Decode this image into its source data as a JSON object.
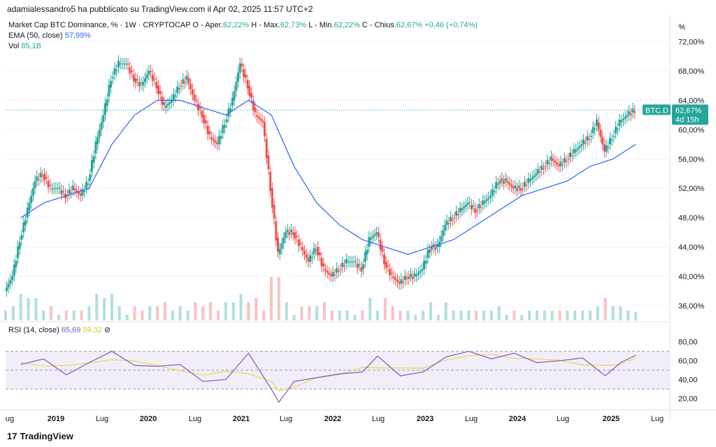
{
  "header": {
    "published": "adamialessandro5 ha pubblicato su TradingView.com il Apr 02, 2025 11:57 UTC+2"
  },
  "legend": {
    "title": "Market Cap BTC Dominance, % · 1W · CRYPTOCAP",
    "o_label": "O - Aper.",
    "o_val": "62,22%",
    "h_label": "H - Max.",
    "h_val": "62,73%",
    "l_label": "L - Min.",
    "l_val": "62,22%",
    "c_label": "C - Chius.",
    "c_val": "62,67%",
    "chg": "+0,46 (+0,74%)",
    "ema_label": "EMA (50, close)",
    "ema_val": "57,99%",
    "vol_label": "Vol",
    "vol_val": "85,1B",
    "rsi_label": "RSI (14, close)",
    "rsi_val": "65,69",
    "rsi_ma_val": "59,32"
  },
  "price_axis": {
    "unit": "%",
    "ticks": [
      "72,00%",
      "68,00%",
      "64,00%",
      "60,00%",
      "56,00%",
      "52,00%",
      "48,00%",
      "44,00%",
      "40,00%",
      "36,00%"
    ],
    "tick_values": [
      72,
      68,
      64,
      60,
      56,
      52,
      48,
      44,
      40,
      36
    ]
  },
  "rsi_axis": {
    "ticks": [
      "80,00",
      "60,00",
      "40,00",
      "20,00"
    ],
    "tick_values": [
      80,
      60,
      40,
      20
    ]
  },
  "time_axis": {
    "labels": [
      "ug",
      "2019",
      "Lug",
      "2020",
      "Lug",
      "2021",
      "Lug",
      "2022",
      "Lug",
      "2023",
      "Lug",
      "2024",
      "Lug",
      "2025",
      "Lug"
    ],
    "bold": [
      false,
      true,
      false,
      true,
      false,
      true,
      false,
      true,
      false,
      true,
      false,
      true,
      false,
      true,
      false
    ]
  },
  "badge": {
    "symbol": "BTC.D",
    "price": "62,67%",
    "countdown": "4d 15h"
  },
  "logo": {
    "text": "TradingView",
    "mark": "17"
  },
  "colors": {
    "up": "#26a69a",
    "down": "#ef5350",
    "ema": "#2962ff",
    "rsi": "#7e57c2",
    "rsi_ma": "#e6d84a",
    "rsi_band": "#ede7f6"
  },
  "chart_data": {
    "type": "candlestick",
    "title": "Market Cap BTC Dominance, % · 1W · CRYPTOCAP",
    "ylim": [
      34,
      75
    ],
    "x_range": [
      "2018-05",
      "2025-08"
    ],
    "series_close": [
      {
        "date": "2018-05",
        "close": 38
      },
      {
        "date": "2018-06",
        "close": 40
      },
      {
        "date": "2018-07",
        "close": 45
      },
      {
        "date": "2018-08",
        "close": 49
      },
      {
        "date": "2018-09",
        "close": 53
      },
      {
        "date": "2018-10",
        "close": 54
      },
      {
        "date": "2018-11",
        "close": 52
      },
      {
        "date": "2018-12",
        "close": 52
      },
      {
        "date": "2019-01",
        "close": 51
      },
      {
        "date": "2019-02",
        "close": 52
      },
      {
        "date": "2019-03",
        "close": 51
      },
      {
        "date": "2019-04",
        "close": 53
      },
      {
        "date": "2019-05",
        "close": 58
      },
      {
        "date": "2019-06",
        "close": 62
      },
      {
        "date": "2019-07",
        "close": 67
      },
      {
        "date": "2019-08",
        "close": 69
      },
      {
        "date": "2019-09",
        "close": 69
      },
      {
        "date": "2019-10",
        "close": 67
      },
      {
        "date": "2019-11",
        "close": 66
      },
      {
        "date": "2019-12",
        "close": 68
      },
      {
        "date": "2020-01",
        "close": 66
      },
      {
        "date": "2020-02",
        "close": 63
      },
      {
        "date": "2020-03",
        "close": 64
      },
      {
        "date": "2020-04",
        "close": 66
      },
      {
        "date": "2020-05",
        "close": 67
      },
      {
        "date": "2020-06",
        "close": 64
      },
      {
        "date": "2020-07",
        "close": 62
      },
      {
        "date": "2020-08",
        "close": 59
      },
      {
        "date": "2020-09",
        "close": 58
      },
      {
        "date": "2020-10",
        "close": 61
      },
      {
        "date": "2020-11",
        "close": 64
      },
      {
        "date": "2020-12",
        "close": 69
      },
      {
        "date": "2021-01",
        "close": 66
      },
      {
        "date": "2021-02",
        "close": 62
      },
      {
        "date": "2021-03",
        "close": 61
      },
      {
        "date": "2021-04",
        "close": 52
      },
      {
        "date": "2021-05",
        "close": 43
      },
      {
        "date": "2021-06",
        "close": 46
      },
      {
        "date": "2021-07",
        "close": 46
      },
      {
        "date": "2021-08",
        "close": 44
      },
      {
        "date": "2021-09",
        "close": 42
      },
      {
        "date": "2021-10",
        "close": 44
      },
      {
        "date": "2021-11",
        "close": 41
      },
      {
        "date": "2021-12",
        "close": 40
      },
      {
        "date": "2022-01",
        "close": 41
      },
      {
        "date": "2022-02",
        "close": 42
      },
      {
        "date": "2022-03",
        "close": 42
      },
      {
        "date": "2022-04",
        "close": 41
      },
      {
        "date": "2022-05",
        "close": 45
      },
      {
        "date": "2022-06",
        "close": 46
      },
      {
        "date": "2022-07",
        "close": 42
      },
      {
        "date": "2022-08",
        "close": 40
      },
      {
        "date": "2022-09",
        "close": 39
      },
      {
        "date": "2022-10",
        "close": 40
      },
      {
        "date": "2022-11",
        "close": 40
      },
      {
        "date": "2022-12",
        "close": 41
      },
      {
        "date": "2023-01",
        "close": 44
      },
      {
        "date": "2023-02",
        "close": 44
      },
      {
        "date": "2023-03",
        "close": 47
      },
      {
        "date": "2023-04",
        "close": 48
      },
      {
        "date": "2023-05",
        "close": 49
      },
      {
        "date": "2023-06",
        "close": 50
      },
      {
        "date": "2023-07",
        "close": 49
      },
      {
        "date": "2023-08",
        "close": 50
      },
      {
        "date": "2023-09",
        "close": 51
      },
      {
        "date": "2023-10",
        "close": 53
      },
      {
        "date": "2023-11",
        "close": 53
      },
      {
        "date": "2023-12",
        "close": 52
      },
      {
        "date": "2024-01",
        "close": 52
      },
      {
        "date": "2024-02",
        "close": 53
      },
      {
        "date": "2024-03",
        "close": 54
      },
      {
        "date": "2024-04",
        "close": 55
      },
      {
        "date": "2024-05",
        "close": 56
      },
      {
        "date": "2024-06",
        "close": 55
      },
      {
        "date": "2024-07",
        "close": 56
      },
      {
        "date": "2024-08",
        "close": 57
      },
      {
        "date": "2024-09",
        "close": 58
      },
      {
        "date": "2024-10",
        "close": 59
      },
      {
        "date": "2024-11",
        "close": 61
      },
      {
        "date": "2024-12",
        "close": 57
      },
      {
        "date": "2025-01",
        "close": 59
      },
      {
        "date": "2025-02",
        "close": 61
      },
      {
        "date": "2025-03",
        "close": 62
      },
      {
        "date": "2025-04",
        "close": 62.67
      }
    ],
    "ema_50": [
      {
        "date": "2018-07",
        "value": 48
      },
      {
        "date": "2018-10",
        "value": 50
      },
      {
        "date": "2019-01",
        "value": 51
      },
      {
        "date": "2019-04",
        "value": 52
      },
      {
        "date": "2019-07",
        "value": 58
      },
      {
        "date": "2019-10",
        "value": 62
      },
      {
        "date": "2020-01",
        "value": 64
      },
      {
        "date": "2020-04",
        "value": 64
      },
      {
        "date": "2020-07",
        "value": 63
      },
      {
        "date": "2020-10",
        "value": 62
      },
      {
        "date": "2021-01",
        "value": 64
      },
      {
        "date": "2021-04",
        "value": 62
      },
      {
        "date": "2021-07",
        "value": 55
      },
      {
        "date": "2021-10",
        "value": 50
      },
      {
        "date": "2022-01",
        "value": 47
      },
      {
        "date": "2022-04",
        "value": 45
      },
      {
        "date": "2022-07",
        "value": 44
      },
      {
        "date": "2022-10",
        "value": 43
      },
      {
        "date": "2023-01",
        "value": 44
      },
      {
        "date": "2023-04",
        "value": 45
      },
      {
        "date": "2023-07",
        "value": 47
      },
      {
        "date": "2023-10",
        "value": 49
      },
      {
        "date": "2024-01",
        "value": 51
      },
      {
        "date": "2024-04",
        "value": 52
      },
      {
        "date": "2024-07",
        "value": 53
      },
      {
        "date": "2024-10",
        "value": 55
      },
      {
        "date": "2025-01",
        "value": 56
      },
      {
        "date": "2025-04",
        "value": 57.99
      }
    ],
    "rsi_14": [
      {
        "date": "2018-07",
        "value": 56
      },
      {
        "date": "2018-10",
        "value": 62
      },
      {
        "date": "2019-01",
        "value": 45
      },
      {
        "date": "2019-04",
        "value": 58
      },
      {
        "date": "2019-07",
        "value": 70
      },
      {
        "date": "2019-10",
        "value": 55
      },
      {
        "date": "2020-01",
        "value": 54
      },
      {
        "date": "2020-04",
        "value": 56
      },
      {
        "date": "2020-07",
        "value": 38
      },
      {
        "date": "2020-10",
        "value": 40
      },
      {
        "date": "2021-01",
        "value": 68
      },
      {
        "date": "2021-04",
        "value": 30
      },
      {
        "date": "2021-05",
        "value": 16
      },
      {
        "date": "2021-07",
        "value": 38
      },
      {
        "date": "2021-10",
        "value": 42
      },
      {
        "date": "2022-01",
        "value": 46
      },
      {
        "date": "2022-04",
        "value": 48
      },
      {
        "date": "2022-06",
        "value": 65
      },
      {
        "date": "2022-09",
        "value": 44
      },
      {
        "date": "2022-12",
        "value": 48
      },
      {
        "date": "2023-03",
        "value": 64
      },
      {
        "date": "2023-06",
        "value": 70
      },
      {
        "date": "2023-09",
        "value": 62
      },
      {
        "date": "2023-12",
        "value": 68
      },
      {
        "date": "2024-03",
        "value": 58
      },
      {
        "date": "2024-06",
        "value": 60
      },
      {
        "date": "2024-09",
        "value": 63
      },
      {
        "date": "2024-12",
        "value": 44
      },
      {
        "date": "2025-02",
        "value": 58
      },
      {
        "date": "2025-04",
        "value": 65.69
      }
    ],
    "volume_note": "volume histogram bars under price",
    "rsi_bands": [
      70,
      50,
      30
    ]
  }
}
